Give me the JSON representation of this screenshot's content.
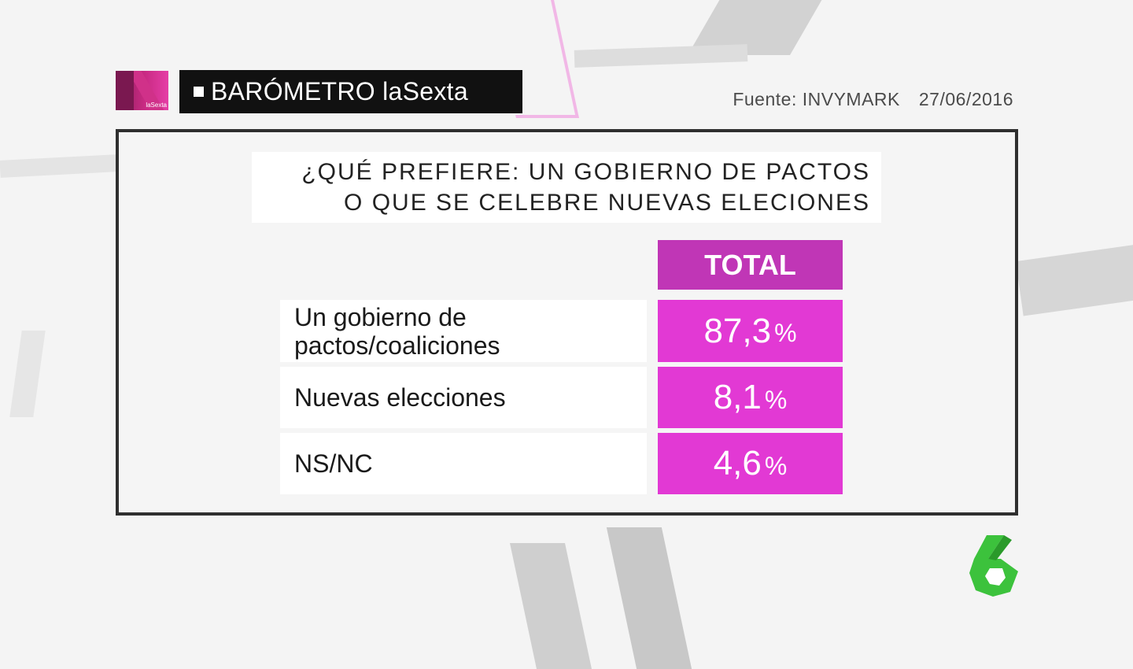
{
  "header": {
    "logo_text": "laSexta",
    "title": "BARÓMETRO laSexta",
    "source": "Fuente: INVYMARK",
    "date": "27/06/2016"
  },
  "question": {
    "line1": "¿QUÉ PREFIERE: UN GOBIERNO DE PACTOS",
    "line2": "O QUE SE CELEBRE NUEVAS ELECIONES"
  },
  "colors": {
    "header_magenta": "#c036b6",
    "value_magenta": "#e239d4",
    "channel_green": "#3cc23c"
  },
  "chart_data": {
    "type": "table",
    "columns": [
      "TOTAL"
    ],
    "rows": [
      {
        "label_line1": "Un gobierno de",
        "label_line2": "pactos/coaliciones",
        "value": "87,3",
        "unit": "%"
      },
      {
        "label_line1": "Nuevas elecciones",
        "label_line2": "",
        "value": "8,1",
        "unit": "%"
      },
      {
        "label_line1": "NS/NC",
        "label_line2": "",
        "value": "4,6",
        "unit": "%"
      }
    ]
  },
  "channel_logo": {
    "icon": "lasexta-6-logo"
  }
}
